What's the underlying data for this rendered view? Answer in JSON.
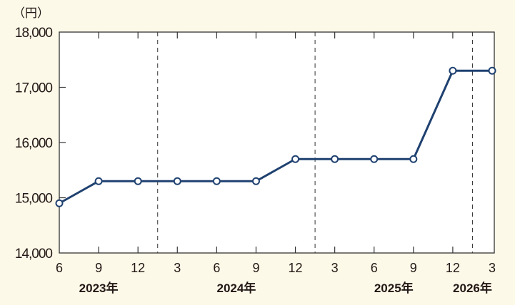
{
  "chart_data": {
    "type": "line",
    "ylabel": "（円）",
    "ylim": [
      14000,
      18000
    ],
    "yticks": [
      14000,
      15000,
      16000,
      17000,
      18000
    ],
    "ytick_labels": [
      "14,000",
      "15,000",
      "16,000",
      "17,000",
      "18,000"
    ],
    "x_month_labels": [
      "6",
      "9",
      "12",
      "3",
      "6",
      "9",
      "12",
      "3",
      "6",
      "9",
      "12",
      "3"
    ],
    "year_labels": [
      {
        "label": "2023年",
        "at_index": 1
      },
      {
        "label": "2024年",
        "at_index": 4.5
      },
      {
        "label": "2025年",
        "at_index": 8.5
      },
      {
        "label": "2026年",
        "at_index": 10.5
      }
    ],
    "year_dividers_after_index": [
      2,
      6,
      10
    ],
    "series": [
      {
        "values": [
          14900,
          15300,
          15300,
          15300,
          15300,
          15300,
          15700,
          15700,
          15700,
          15700,
          17300,
          17300
        ]
      }
    ],
    "grid": false,
    "colors": {
      "line": "#1f4170",
      "background": "#fdf9e9",
      "plot": "#ffffff"
    }
  }
}
